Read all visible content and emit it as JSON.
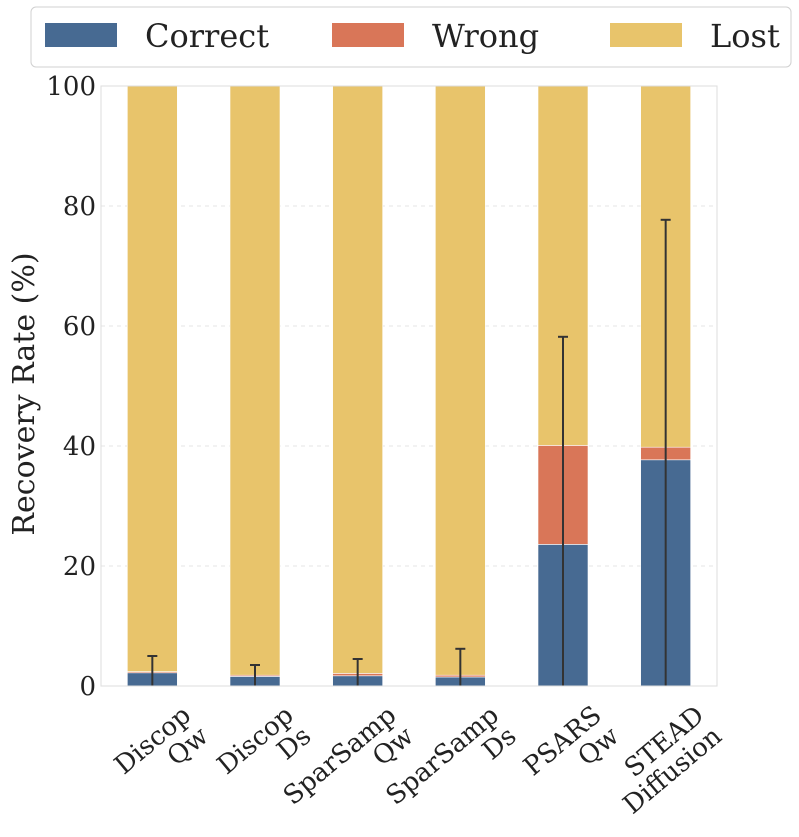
{
  "chart_data": {
    "type": "bar",
    "stacked": true,
    "categories": [
      [
        "Discop",
        "Qw"
      ],
      [
        "Discop",
        "Ds"
      ],
      [
        "SparSamp",
        "Qw"
      ],
      [
        "SparSamp",
        "Ds"
      ],
      [
        "PSARS",
        "Qw"
      ],
      [
        "STEAD",
        "Diffusion"
      ]
    ],
    "series": [
      {
        "name": "Correct",
        "color": "#476a92",
        "values": [
          2.2,
          1.6,
          1.7,
          1.5,
          23.6,
          37.7
        ]
      },
      {
        "name": "Wrong",
        "color": "#d97658",
        "values": [
          0.2,
          0.2,
          0.4,
          0.3,
          16.5,
          2.1
        ]
      },
      {
        "name": "Lost",
        "color": "#e8c46b",
        "values": [
          97.6,
          98.2,
          97.9,
          98.2,
          59.9,
          60.2
        ]
      }
    ],
    "error_bars": [
      {
        "base": 0,
        "top": 5.0
      },
      {
        "base": 0,
        "top": 3.5
      },
      {
        "base": 0,
        "top": 4.5
      },
      {
        "base": 0,
        "top": 6.2
      },
      {
        "base": 0,
        "top": 58.2
      },
      {
        "base": 0,
        "top": 77.7
      }
    ],
    "ylabel": "Recovery Rate (%)",
    "xlabel": "",
    "ylim": [
      0,
      100
    ],
    "yticks": [
      0,
      20,
      40,
      60,
      80,
      100
    ],
    "grid": true,
    "legend_position": "top"
  }
}
